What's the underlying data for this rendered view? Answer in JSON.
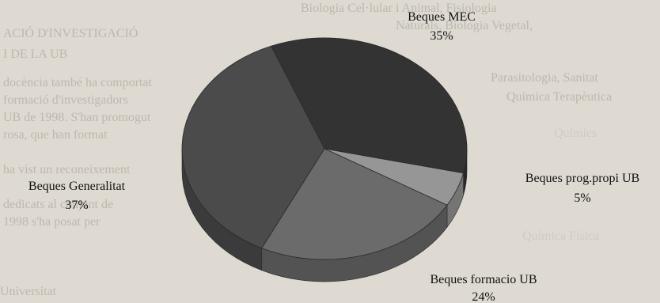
{
  "background_text": [
    "Biologia Cel·lular i Animal, Fisiologia",
    "Naturals, Biologia Vegetal,",
    "ACIÓ D'INVESTIGACIÓ",
    "I DE LA UB",
    "docència també ha comportat",
    "formació d'investigadors",
    "UB de 1998. S'han promogut",
    "rosa, que han format",
    "ha vist un reconeixement",
    "dedicats al conjunt de",
    "1998 s'ha posat per",
    "Parasitologia, Sanitat",
    "Química Terapèutica",
    "Químics",
    "Química Física",
    "Universitat"
  ],
  "chart_data": {
    "type": "pie",
    "title": "",
    "slices": [
      {
        "label": "Beques MEC",
        "percent_label": "35%",
        "value": 35,
        "color": "#333333"
      },
      {
        "label": "Beques prog.propi UB",
        "percent_label": "5%",
        "value": 5,
        "color": "#969696"
      },
      {
        "label": "Beques formacio UB",
        "percent_label": "24%",
        "value": 24,
        "color": "#6b6b6b"
      },
      {
        "label": "Beques Generalitat",
        "percent_label": "37%",
        "value": 37,
        "color": "#4b4b4b"
      }
    ],
    "style": "3d-tilted",
    "legend": "none"
  }
}
